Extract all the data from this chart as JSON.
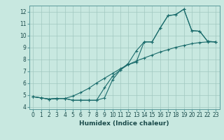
{
  "title": "",
  "xlabel": "Humidex (Indice chaleur)",
  "background_color": "#c8e8e0",
  "grid_color": "#a0c8c0",
  "line_color": "#1a6b6b",
  "xlim": [
    -0.5,
    23.5
  ],
  "ylim": [
    3.8,
    12.5
  ],
  "xticks": [
    0,
    1,
    2,
    3,
    4,
    5,
    6,
    7,
    8,
    9,
    10,
    11,
    12,
    13,
    14,
    15,
    16,
    17,
    18,
    19,
    20,
    21,
    22,
    23
  ],
  "yticks": [
    4,
    5,
    6,
    7,
    8,
    9,
    10,
    11,
    12
  ],
  "curve1_x": [
    0,
    1,
    2,
    3,
    4,
    5,
    6,
    7,
    8,
    9,
    10,
    11,
    12,
    13,
    14,
    15,
    16,
    17,
    18,
    19,
    20,
    21,
    22,
    23
  ],
  "curve1_y": [
    4.85,
    4.75,
    4.65,
    4.7,
    4.7,
    4.55,
    4.55,
    4.55,
    4.55,
    5.6,
    6.55,
    7.1,
    7.55,
    7.75,
    9.45,
    9.45,
    10.6,
    11.65,
    11.75,
    12.2,
    10.4,
    10.35,
    9.5,
    9.45
  ],
  "curve2_x": [
    0,
    1,
    2,
    3,
    4,
    5,
    6,
    7,
    8,
    9,
    10,
    11,
    12,
    13,
    14,
    15,
    16,
    17,
    18,
    19,
    20,
    21,
    22,
    23
  ],
  "curve2_y": [
    4.85,
    4.75,
    4.65,
    4.7,
    4.7,
    4.55,
    4.55,
    4.55,
    4.55,
    4.75,
    6.25,
    7.1,
    7.65,
    8.7,
    9.45,
    9.45,
    10.6,
    11.65,
    11.75,
    12.2,
    10.4,
    10.35,
    9.5,
    9.45
  ],
  "curve3_x": [
    0,
    1,
    2,
    3,
    4,
    5,
    6,
    7,
    8,
    9,
    10,
    11,
    12,
    13,
    14,
    15,
    16,
    17,
    18,
    19,
    20,
    21,
    22,
    23
  ],
  "curve3_y": [
    4.85,
    4.75,
    4.65,
    4.7,
    4.7,
    4.9,
    5.2,
    5.55,
    6.0,
    6.4,
    6.8,
    7.2,
    7.55,
    7.85,
    8.1,
    8.35,
    8.6,
    8.8,
    9.0,
    9.15,
    9.3,
    9.4,
    9.45,
    9.45
  ],
  "tick_fontsize": 5.5,
  "xlabel_fontsize": 6.5
}
